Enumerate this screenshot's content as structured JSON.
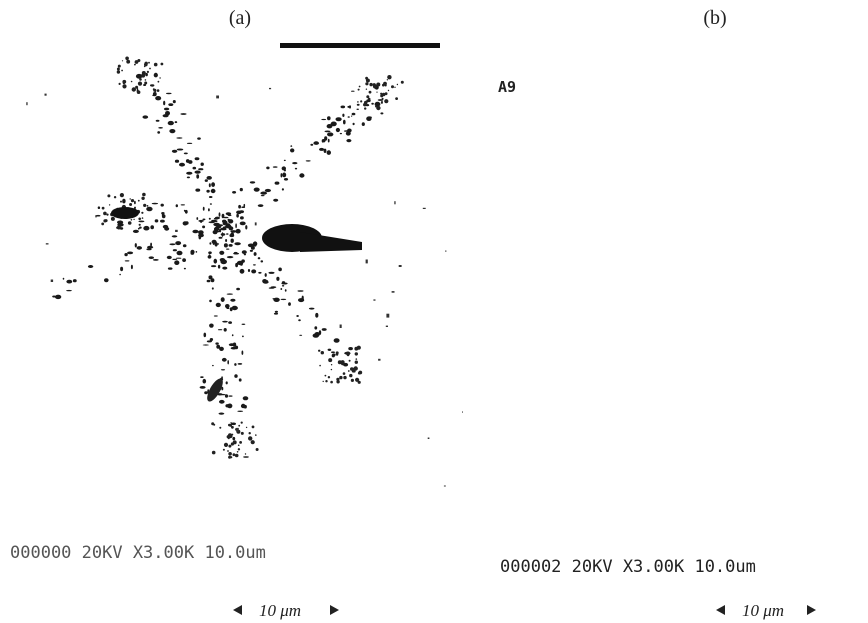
{
  "panels": [
    {
      "label": "(a)",
      "info_bar": "000000 20KV X3.00K 10.0um",
      "scale": "10 μm"
    },
    {
      "label": "(b)",
      "sample": "A9",
      "info_bar": "000002 20KV X3.00K 10.0um",
      "scale": "10 μm"
    }
  ]
}
